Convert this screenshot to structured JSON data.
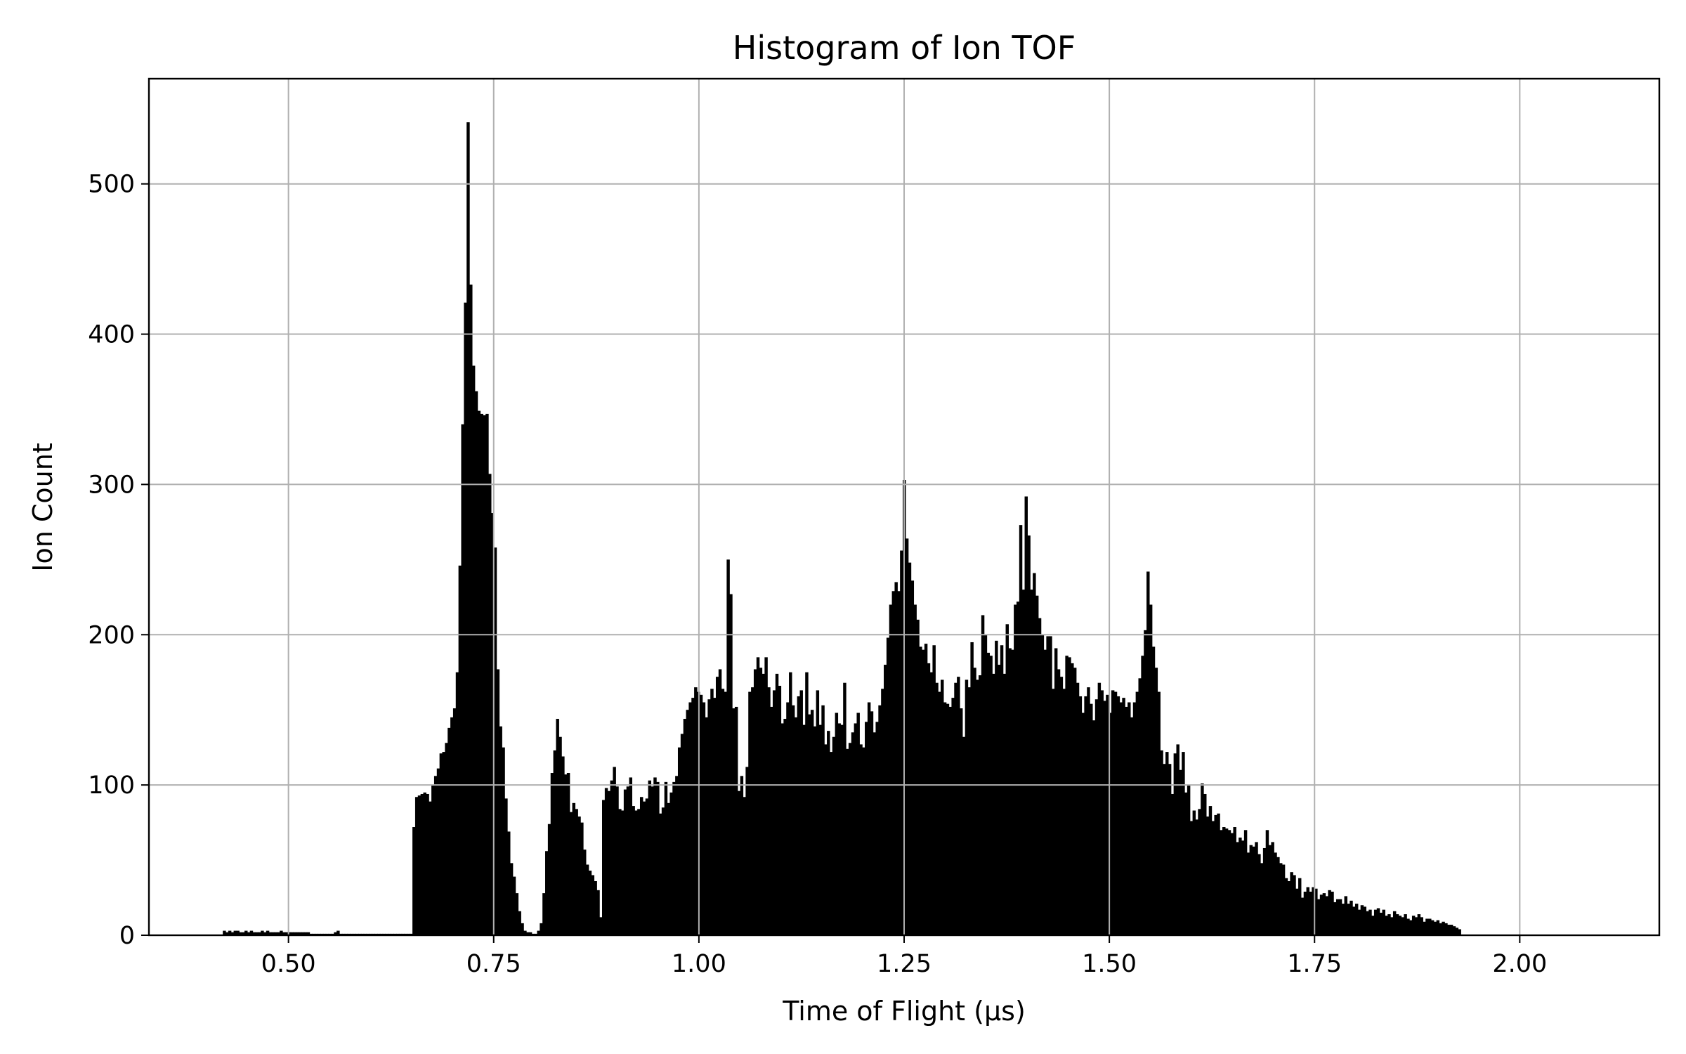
{
  "chart_data": {
    "type": "bar",
    "title": "Histogram of Ion TOF",
    "xlabel": "Time of Flight (μs)",
    "ylabel": "Ion Count",
    "xlim": [
      0.33,
      2.17
    ],
    "ylim": [
      0,
      570
    ],
    "grid": true,
    "bar_color": "#000000",
    "grid_color": "#b0b0b0",
    "x_ticks": [
      0.5,
      0.75,
      1.0,
      1.25,
      1.5,
      1.75,
      2.0
    ],
    "x_tick_labels": [
      "0.50",
      "0.75",
      "1.00",
      "1.25",
      "1.50",
      "1.75",
      "2.00"
    ],
    "y_ticks": [
      0,
      100,
      200,
      300,
      400,
      500
    ],
    "y_tick_labels": [
      "0",
      "100",
      "200",
      "300",
      "400",
      "500"
    ],
    "bin_start": 0.42,
    "bin_width": 0.0033,
    "values": [
      3,
      2,
      3,
      2,
      3,
      3,
      2,
      2,
      3,
      2,
      3,
      2,
      2,
      2,
      3,
      2,
      3,
      2,
      2,
      2,
      2,
      3,
      2,
      2,
      2,
      2,
      2,
      2,
      2,
      2,
      2,
      2,
      1,
      1,
      1,
      1,
      1,
      1,
      1,
      1,
      1,
      2,
      3,
      1,
      1,
      1,
      1,
      1,
      1,
      1,
      1,
      1,
      1,
      1,
      1,
      1,
      1,
      1,
      1,
      1,
      1,
      1,
      1,
      1,
      1,
      1,
      1,
      1,
      1,
      1,
      72,
      92,
      93,
      94,
      95,
      94,
      89,
      100,
      106,
      111,
      121,
      122,
      128,
      138,
      145,
      151,
      175,
      246,
      340,
      421,
      541,
      433,
      379,
      362,
      349,
      347,
      346,
      347,
      307,
      281,
      258,
      177,
      139,
      125,
      91,
      69,
      48,
      39,
      28,
      16,
      8,
      3,
      2,
      2,
      1,
      1,
      3,
      8,
      28,
      56,
      74,
      108,
      123,
      144,
      132,
      119,
      107,
      108,
      82,
      88,
      84,
      79,
      75,
      57,
      47,
      43,
      40,
      36,
      30,
      12,
      90,
      98,
      96,
      103,
      112,
      99,
      84,
      83,
      97,
      99,
      105,
      86,
      83,
      84,
      92,
      89,
      91,
      103,
      99,
      105,
      102,
      81,
      85,
      102,
      88,
      95,
      102,
      106,
      125,
      134,
      144,
      150,
      155,
      158,
      165,
      162,
      160,
      155,
      145,
      157,
      164,
      158,
      172,
      177,
      164,
      162,
      250,
      227,
      151,
      152,
      96,
      106,
      92,
      112,
      162,
      165,
      177,
      185,
      178,
      174,
      185,
      165,
      152,
      163,
      174,
      166,
      141,
      144,
      155,
      175,
      153,
      145,
      159,
      163,
      140,
      175,
      147,
      150,
      139,
      163,
      140,
      153,
      127,
      136,
      122,
      132,
      148,
      141,
      140,
      168,
      124,
      128,
      135,
      141,
      148,
      127,
      125,
      142,
      155,
      149,
      135,
      142,
      153,
      164,
      180,
      198,
      220,
      229,
      235,
      229,
      256,
      303,
      264,
      248,
      236,
      220,
      210,
      192,
      190,
      194,
      181,
      175,
      193,
      168,
      162,
      170,
      155,
      154,
      152,
      158,
      168,
      172,
      151,
      132,
      170,
      165,
      195,
      178,
      170,
      173,
      213,
      200,
      188,
      186,
      174,
      196,
      180,
      193,
      174,
      207,
      191,
      190,
      220,
      222,
      273,
      230,
      292,
      266,
      230,
      241,
      226,
      211,
      200,
      190,
      199,
      199,
      164,
      191,
      177,
      172,
      164,
      186,
      185,
      181,
      178,
      168,
      159,
      148,
      159,
      165,
      154,
      143,
      157,
      168,
      163,
      156,
      160,
      148,
      163,
      162,
      159,
      155,
      158,
      152,
      155,
      145,
      155,
      162,
      171,
      186,
      203,
      242,
      220,
      192,
      178,
      162,
      123,
      114,
      122,
      114,
      94,
      121,
      127,
      110,
      122,
      95,
      100,
      76,
      83,
      77,
      84,
      101,
      94,
      79,
      86,
      76,
      80,
      81,
      70,
      72,
      71,
      70,
      68,
      72,
      62,
      65,
      63,
      70,
      55,
      60,
      59,
      62,
      54,
      48,
      58,
      70,
      60,
      62,
      55,
      52,
      48,
      47,
      38,
      36,
      42,
      40,
      31,
      38,
      25,
      29,
      32,
      29,
      32,
      31,
      24,
      27,
      28,
      26,
      30,
      29,
      22,
      24,
      24,
      21,
      26,
      21,
      23,
      19,
      21,
      17,
      20,
      19,
      16,
      17,
      13,
      17,
      18,
      15,
      17,
      13,
      14,
      12,
      16,
      14,
      13,
      12,
      14,
      11,
      10,
      13,
      12,
      14,
      12,
      9,
      11,
      11,
      10,
      9,
      10,
      8,
      9,
      8,
      7,
      7,
      6,
      5,
      4
    ]
  }
}
